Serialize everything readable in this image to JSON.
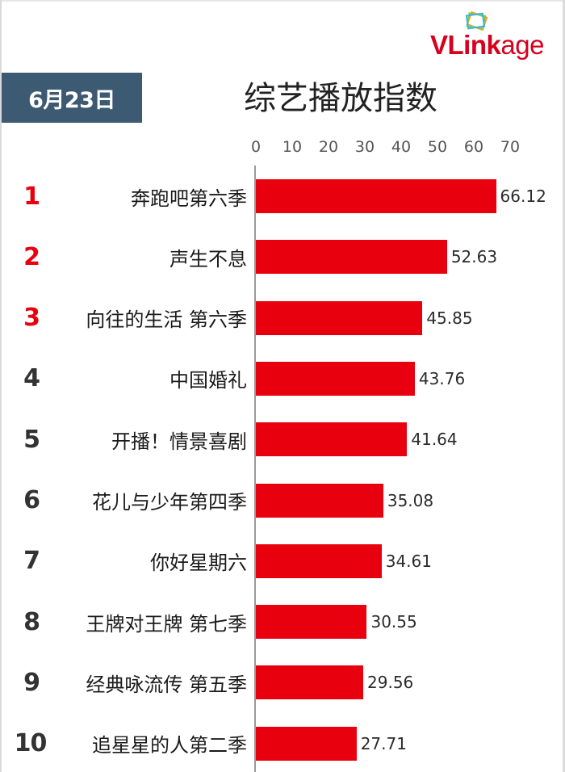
{
  "logo": {
    "text_bold": "VLink",
    "text_regular": "age",
    "color": "#d6001c",
    "icon": "stacked-cards-icon"
  },
  "header": {
    "date": "6月23日",
    "date_badge_color": "#3d5a73",
    "title": "综艺播放指数"
  },
  "colors": {
    "bar": "#e8000f",
    "rank_top3": "#e8000f",
    "rank_other": "#333333"
  },
  "chart_data": {
    "type": "bar",
    "orientation": "horizontal",
    "title": "综艺播放指数",
    "subtitle": "6月23日",
    "xlabel": "",
    "ylabel": "",
    "xlim": [
      0,
      70
    ],
    "x_ticks": [
      "0",
      "10",
      "20",
      "30",
      "40",
      "50",
      "60",
      "70"
    ],
    "x_axis_position": "top",
    "grid": false,
    "legend": null,
    "categories": [
      "奔跑吧第六季",
      "声生不息",
      "向往的生活 第六季",
      "中国婚礼",
      "开播！情景喜剧",
      "花儿与少年第四季",
      "你好星期六",
      "王牌对王牌 第七季",
      "经典咏流传 第五季",
      "追星星的人第二季"
    ],
    "values": [
      66.12,
      52.63,
      45.85,
      43.76,
      41.64,
      35.08,
      34.61,
      30.55,
      29.56,
      27.71
    ],
    "value_labels": [
      "66.12",
      "52.63",
      "45.85",
      "43.76",
      "41.64",
      "35.08",
      "34.61",
      "30.55",
      "29.56",
      "27.71"
    ],
    "ranks": [
      "1",
      "2",
      "3",
      "4",
      "5",
      "6",
      "7",
      "8",
      "9",
      "10"
    ]
  }
}
